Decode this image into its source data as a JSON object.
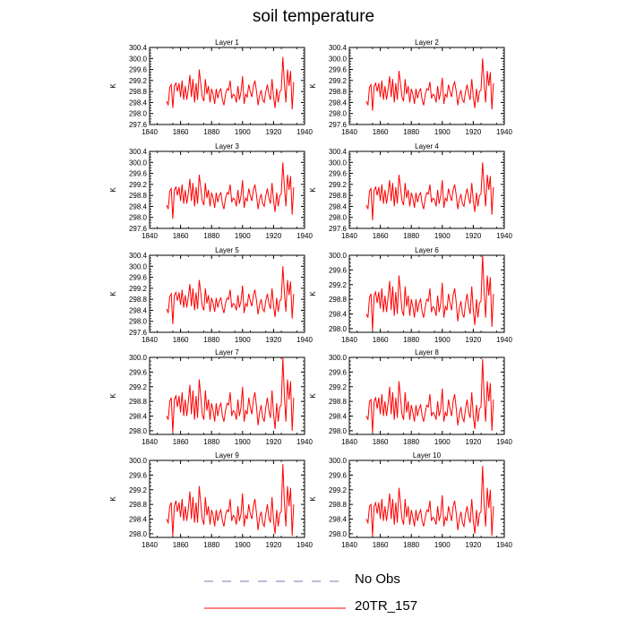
{
  "title": "soil temperature",
  "colors": {
    "model": "#ff0000",
    "obs": "#8a6fb0",
    "axis": "#000000"
  },
  "legend": [
    {
      "label": "No Obs",
      "style": "dashed",
      "color": "#8a6fb0"
    },
    {
      "label": "20TR_157",
      "style": "solid",
      "color": "#ff0000"
    }
  ],
  "chart_data": {
    "type": "line",
    "xlim": [
      1840,
      1940
    ],
    "x_ticks": [
      1840,
      1860,
      1880,
      1900,
      1920,
      1940
    ],
    "x_start": 1851,
    "x_end": 1933,
    "ylabel": "K",
    "series_name": "20TR_157",
    "panels": [
      {
        "title": "Layer 1",
        "ylim": [
          297.6,
          300.4
        ],
        "y_ticks": [
          "297.6",
          "298.0",
          "298.4",
          "298.8",
          "299.2",
          "299.6",
          "300.0",
          "300.4"
        ]
      },
      {
        "title": "Layer 2",
        "ylim": [
          297.6,
          300.4
        ],
        "y_ticks": [
          "297.6",
          "298.0",
          "298.4",
          "298.8",
          "299.2",
          "299.6",
          "300.0",
          "300.4"
        ]
      },
      {
        "title": "Layer 3",
        "ylim": [
          297.6,
          300.4
        ],
        "y_ticks": [
          "297.6",
          "298.0",
          "298.4",
          "298.8",
          "299.2",
          "299.6",
          "300.0",
          "300.4"
        ]
      },
      {
        "title": "Layer 4",
        "ylim": [
          297.6,
          300.4
        ],
        "y_ticks": [
          "297.6",
          "298.0",
          "298.4",
          "298.8",
          "299.2",
          "299.6",
          "300.0",
          "300.4"
        ]
      },
      {
        "title": "Layer 5",
        "ylim": [
          297.6,
          300.4
        ],
        "y_ticks": [
          "297.6",
          "298.0",
          "298.4",
          "298.8",
          "299.2",
          "299.6",
          "300.0",
          "300.4"
        ]
      },
      {
        "title": "Layer 6",
        "ylim": [
          297.9,
          300.0
        ],
        "y_ticks": [
          "298.0",
          "298.4",
          "298.8",
          "299.2",
          "299.6",
          "300.0"
        ]
      },
      {
        "title": "Layer 7",
        "ylim": [
          297.9,
          300.0
        ],
        "y_ticks": [
          "298.0",
          "298.4",
          "298.8",
          "299.2",
          "299.6",
          "300.0"
        ]
      },
      {
        "title": "Layer 8",
        "ylim": [
          297.9,
          300.0
        ],
        "y_ticks": [
          "298.0",
          "298.4",
          "298.8",
          "299.2",
          "299.6",
          "300.0"
        ]
      },
      {
        "title": "Layer 9",
        "ylim": [
          297.9,
          300.0
        ],
        "y_ticks": [
          "298.0",
          "298.4",
          "298.8",
          "299.2",
          "299.6",
          "300.0"
        ]
      },
      {
        "title": "Layer 10",
        "ylim": [
          297.9,
          300.0
        ],
        "y_ticks": [
          "298.0",
          "298.4",
          "298.8",
          "299.2",
          "299.6",
          "300.0"
        ]
      }
    ],
    "series": [
      {
        "layer": 1,
        "values": [
          298.45,
          298.3,
          298.95,
          299.05,
          298.2,
          299.0,
          299.1,
          298.8,
          299.1,
          298.6,
          299.2,
          298.5,
          299.0,
          298.5,
          298.9,
          299.4,
          298.6,
          299.25,
          298.4,
          299.1,
          298.5,
          299.6,
          299.1,
          298.6,
          298.45,
          299.25,
          298.7,
          299.0,
          298.4,
          298.9,
          298.7,
          298.35,
          298.9,
          298.55,
          298.8,
          298.9,
          298.5,
          298.3,
          298.7,
          298.9,
          298.85,
          299.2,
          298.55,
          298.7,
          298.65,
          298.4,
          299.0,
          298.5,
          298.8,
          299.35,
          298.35,
          298.7,
          298.6,
          299.05,
          298.8,
          298.6,
          299.0,
          299.2,
          298.8,
          298.3,
          298.65,
          298.85,
          298.5,
          298.4,
          298.8,
          299.05,
          298.7,
          298.5,
          299.25,
          298.6,
          298.2,
          298.9,
          298.4,
          298.8,
          298.85,
          300.05,
          299.1,
          298.4,
          299.6,
          299.0,
          299.55,
          298.15,
          299.15
        ]
      },
      {
        "layer": 2,
        "values": [
          298.45,
          298.3,
          298.95,
          299.05,
          298.1,
          299.0,
          299.1,
          298.8,
          299.1,
          298.6,
          299.2,
          298.5,
          299.0,
          298.5,
          298.9,
          299.35,
          298.6,
          299.25,
          298.4,
          299.1,
          298.5,
          299.55,
          299.1,
          298.6,
          298.45,
          299.25,
          298.7,
          299.0,
          298.4,
          298.9,
          298.7,
          298.35,
          298.9,
          298.55,
          298.8,
          298.9,
          298.5,
          298.3,
          298.7,
          298.9,
          298.85,
          299.15,
          298.55,
          298.7,
          298.65,
          298.4,
          299.0,
          298.5,
          298.8,
          299.3,
          298.35,
          298.7,
          298.6,
          299.05,
          298.8,
          298.6,
          299.0,
          299.15,
          298.8,
          298.3,
          298.65,
          298.85,
          298.5,
          298.4,
          298.8,
          299.05,
          298.7,
          298.5,
          299.25,
          298.6,
          298.2,
          298.9,
          298.4,
          298.8,
          298.85,
          300.0,
          299.1,
          298.4,
          299.55,
          299.0,
          299.5,
          298.15,
          299.1
        ]
      },
      {
        "layer": 3,
        "values": [
          298.45,
          298.3,
          298.95,
          299.05,
          297.95,
          299.0,
          299.1,
          298.8,
          299.1,
          298.6,
          299.2,
          298.5,
          299.0,
          298.5,
          298.9,
          299.4,
          298.6,
          299.25,
          298.4,
          299.1,
          298.5,
          299.55,
          299.1,
          298.6,
          298.45,
          299.25,
          298.7,
          299.0,
          298.4,
          298.9,
          298.7,
          298.35,
          298.9,
          298.55,
          298.8,
          298.9,
          298.5,
          298.3,
          298.7,
          298.9,
          298.85,
          299.2,
          298.55,
          298.7,
          298.65,
          298.4,
          299.0,
          298.5,
          298.8,
          299.35,
          298.35,
          298.7,
          298.6,
          299.05,
          298.8,
          298.6,
          299.0,
          299.2,
          298.8,
          298.3,
          298.65,
          298.85,
          298.5,
          298.4,
          298.8,
          299.05,
          298.7,
          298.5,
          299.25,
          298.6,
          298.2,
          298.9,
          298.4,
          298.8,
          298.85,
          300.0,
          299.1,
          298.4,
          299.55,
          299.0,
          299.5,
          298.1,
          299.1
        ]
      },
      {
        "layer": 4,
        "values": [
          298.45,
          298.3,
          298.95,
          299.05,
          297.9,
          299.0,
          299.1,
          298.8,
          299.1,
          298.6,
          299.2,
          298.5,
          299.0,
          298.5,
          298.9,
          299.35,
          298.6,
          299.25,
          298.4,
          299.1,
          298.5,
          299.55,
          299.1,
          298.6,
          298.45,
          299.25,
          298.7,
          299.0,
          298.4,
          298.9,
          298.7,
          298.35,
          298.9,
          298.55,
          298.8,
          298.9,
          298.5,
          298.3,
          298.7,
          298.9,
          298.85,
          299.2,
          298.55,
          298.7,
          298.65,
          298.4,
          299.0,
          298.5,
          298.8,
          299.35,
          298.35,
          298.7,
          298.6,
          299.05,
          298.8,
          298.6,
          299.0,
          299.2,
          298.8,
          298.3,
          298.65,
          298.85,
          298.5,
          298.4,
          298.8,
          299.05,
          298.7,
          298.5,
          299.25,
          298.6,
          298.2,
          298.9,
          298.4,
          298.8,
          298.85,
          300.0,
          299.1,
          298.4,
          299.55,
          299.0,
          299.5,
          298.1,
          299.1
        ]
      },
      {
        "layer": 5,
        "values": [
          298.45,
          298.3,
          298.9,
          299.0,
          297.9,
          298.95,
          299.05,
          298.75,
          299.05,
          298.6,
          299.15,
          298.5,
          298.95,
          298.5,
          298.9,
          299.35,
          298.55,
          299.2,
          298.4,
          299.05,
          298.45,
          299.5,
          299.05,
          298.55,
          298.4,
          299.2,
          298.65,
          298.95,
          298.35,
          298.85,
          298.65,
          298.35,
          298.85,
          298.5,
          298.75,
          298.85,
          298.5,
          298.3,
          298.65,
          298.85,
          298.8,
          299.15,
          298.5,
          298.65,
          298.6,
          298.4,
          298.95,
          298.5,
          298.75,
          299.3,
          298.3,
          298.65,
          298.55,
          299.0,
          298.75,
          298.55,
          298.95,
          299.15,
          298.75,
          298.25,
          298.6,
          298.8,
          298.45,
          298.35,
          298.75,
          299.0,
          298.65,
          298.45,
          299.2,
          298.55,
          298.15,
          298.85,
          298.35,
          298.75,
          298.8,
          300.0,
          299.05,
          298.35,
          299.5,
          298.95,
          299.45,
          298.1,
          299.0
        ]
      },
      {
        "layer": 6,
        "values": [
          298.4,
          298.3,
          298.85,
          298.95,
          297.95,
          298.9,
          299.0,
          298.7,
          299.0,
          298.55,
          299.1,
          298.45,
          298.9,
          298.45,
          298.85,
          299.3,
          298.5,
          299.15,
          298.35,
          299.0,
          298.4,
          299.45,
          299.0,
          298.5,
          298.35,
          299.15,
          298.6,
          298.9,
          298.35,
          298.8,
          298.6,
          298.3,
          298.8,
          298.45,
          298.7,
          298.8,
          298.45,
          298.3,
          298.6,
          298.8,
          298.75,
          299.1,
          298.45,
          298.6,
          298.55,
          298.35,
          298.9,
          298.45,
          298.7,
          299.25,
          298.3,
          298.6,
          298.5,
          298.95,
          298.7,
          298.5,
          298.9,
          299.1,
          298.7,
          298.2,
          298.55,
          298.75,
          298.4,
          298.3,
          298.7,
          298.95,
          298.6,
          298.4,
          299.15,
          298.5,
          298.1,
          298.8,
          298.3,
          298.7,
          298.75,
          300.0,
          299.0,
          298.3,
          299.45,
          298.9,
          299.4,
          298.05,
          298.95
        ]
      },
      {
        "layer": 7,
        "values": [
          298.4,
          298.3,
          298.8,
          298.9,
          297.95,
          298.85,
          298.95,
          298.65,
          298.95,
          298.5,
          299.05,
          298.4,
          298.85,
          298.4,
          298.8,
          299.25,
          298.45,
          299.1,
          298.3,
          298.95,
          298.35,
          299.4,
          298.95,
          298.45,
          298.3,
          299.1,
          298.55,
          298.85,
          298.3,
          298.75,
          298.55,
          298.25,
          298.75,
          298.4,
          298.65,
          298.75,
          298.4,
          298.25,
          298.55,
          298.75,
          298.7,
          299.05,
          298.4,
          298.55,
          298.5,
          298.3,
          298.85,
          298.4,
          298.65,
          299.2,
          298.25,
          298.55,
          298.45,
          298.9,
          298.65,
          298.45,
          298.85,
          299.05,
          298.65,
          298.15,
          298.5,
          298.7,
          298.35,
          298.25,
          298.65,
          298.9,
          298.55,
          298.35,
          299.1,
          298.45,
          298.05,
          298.75,
          298.25,
          298.65,
          298.7,
          300.0,
          298.95,
          298.25,
          299.4,
          298.85,
          299.35,
          298.0,
          298.9
        ]
      },
      {
        "layer": 8,
        "values": [
          298.4,
          298.3,
          298.8,
          298.85,
          297.95,
          298.8,
          298.9,
          298.6,
          298.9,
          298.45,
          299.0,
          298.4,
          298.8,
          298.4,
          298.75,
          299.2,
          298.45,
          299.05,
          298.3,
          298.9,
          298.35,
          299.35,
          298.9,
          298.45,
          298.3,
          299.05,
          298.5,
          298.8,
          298.3,
          298.7,
          298.5,
          298.25,
          298.7,
          298.4,
          298.6,
          298.7,
          298.4,
          298.25,
          298.5,
          298.7,
          298.65,
          299.0,
          298.4,
          298.5,
          298.45,
          298.3,
          298.8,
          298.4,
          298.6,
          299.15,
          298.25,
          298.5,
          298.4,
          298.85,
          298.6,
          298.4,
          298.8,
          299.0,
          298.6,
          298.15,
          298.45,
          298.65,
          298.35,
          298.25,
          298.6,
          298.85,
          298.5,
          298.35,
          299.05,
          298.4,
          298.05,
          298.7,
          298.25,
          298.6,
          298.65,
          299.95,
          298.9,
          298.25,
          299.35,
          298.8,
          299.3,
          298.0,
          298.85
        ]
      },
      {
        "layer": 9,
        "values": [
          298.4,
          298.3,
          298.75,
          298.85,
          297.95,
          298.75,
          298.9,
          298.6,
          298.85,
          298.45,
          298.95,
          298.35,
          298.75,
          298.35,
          298.7,
          299.15,
          298.4,
          299.0,
          298.3,
          298.85,
          298.3,
          299.3,
          298.85,
          298.4,
          298.25,
          299.0,
          298.5,
          298.75,
          298.25,
          298.65,
          298.5,
          298.2,
          298.65,
          298.35,
          298.55,
          298.65,
          298.35,
          298.2,
          298.5,
          298.65,
          298.6,
          298.95,
          298.35,
          298.5,
          298.45,
          298.25,
          298.75,
          298.35,
          298.55,
          299.1,
          298.2,
          298.5,
          298.4,
          298.8,
          298.55,
          298.4,
          298.75,
          298.95,
          298.55,
          298.1,
          298.45,
          298.6,
          298.3,
          298.2,
          298.55,
          298.8,
          298.45,
          298.3,
          299.0,
          298.35,
          298.0,
          298.65,
          298.2,
          298.55,
          298.6,
          299.9,
          298.85,
          298.2,
          299.3,
          298.75,
          299.25,
          297.95,
          298.8
        ]
      },
      {
        "layer": 10,
        "values": [
          298.4,
          298.3,
          298.75,
          298.8,
          297.95,
          298.75,
          298.85,
          298.55,
          298.85,
          298.4,
          298.95,
          298.35,
          298.75,
          298.35,
          298.7,
          299.1,
          298.4,
          298.95,
          298.25,
          298.85,
          298.3,
          299.25,
          298.85,
          298.4,
          298.25,
          298.95,
          298.45,
          298.75,
          298.25,
          298.65,
          298.45,
          298.2,
          298.65,
          298.35,
          298.55,
          298.65,
          298.35,
          298.2,
          298.45,
          298.65,
          298.6,
          298.9,
          298.35,
          298.45,
          298.4,
          298.25,
          298.75,
          298.35,
          298.55,
          299.05,
          298.2,
          298.45,
          298.35,
          298.75,
          298.55,
          298.35,
          298.75,
          298.9,
          298.55,
          298.1,
          298.4,
          298.6,
          298.3,
          298.2,
          298.55,
          298.75,
          298.45,
          298.3,
          298.95,
          298.35,
          298.0,
          298.65,
          298.2,
          298.55,
          298.6,
          299.85,
          298.8,
          298.2,
          299.25,
          298.7,
          299.2,
          297.95,
          298.75
        ]
      }
    ]
  }
}
